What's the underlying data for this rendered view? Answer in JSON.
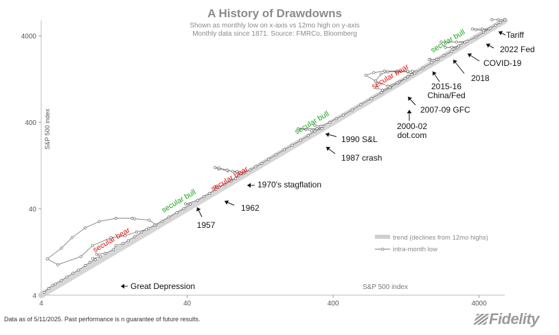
{
  "chart_data": {
    "type": "scatter",
    "title": "A History of Drawdowns",
    "subtitle": [
      "Shown as monthly low on x-axis  vs 12mo high on y-axis",
      "Monthly data since 1871.  Source: FMRCo, Bloomberg"
    ],
    "xlabel": "S&P 500 index",
    "ylabel": "S&P 500 index",
    "xscale": "log",
    "yscale": "log",
    "xlim": [
      4,
      6000
    ],
    "ylim": [
      4,
      6000
    ],
    "xticks": [
      4,
      40,
      400,
      4000
    ],
    "yticks": [
      4,
      40,
      400,
      4000
    ],
    "tick_labels": [
      "4",
      "40",
      "400",
      "4000"
    ],
    "grid": false,
    "legend_position": "bottom-right",
    "series": [
      {
        "name": "trend (declines from 12mo highs)",
        "style": "band",
        "x": [
          4,
          6000
        ],
        "y": [
          4,
          6000
        ],
        "color": "#cfcfcf"
      },
      {
        "name": "intra-month low",
        "style": "line-markers",
        "color": "#707070",
        "points": [
          [
            4.2,
            4.3
          ],
          [
            4.5,
            4.8
          ],
          [
            4.8,
            5.2
          ],
          [
            5.0,
            5.4
          ],
          [
            5.5,
            5.9
          ],
          [
            6.0,
            6.5
          ],
          [
            6.6,
            7.2
          ],
          [
            7.2,
            7.8
          ],
          [
            8.0,
            8.8
          ],
          [
            8.6,
            9.6
          ],
          [
            9.4,
            10.3
          ],
          [
            9.0,
            10.6
          ],
          [
            10.2,
            11.2
          ],
          [
            9.6,
            11.9
          ],
          [
            11.0,
            12.2
          ],
          [
            12.5,
            13.5
          ],
          [
            13.0,
            15.0
          ],
          [
            14.5,
            15.8
          ],
          [
            15.8,
            17.1
          ],
          [
            17.5,
            19.0
          ],
          [
            19.5,
            21.5
          ],
          [
            21.8,
            23.8
          ],
          [
            24.5,
            26.0
          ],
          [
            22.0,
            29.5
          ],
          [
            17.5,
            30.6
          ],
          [
            16.8,
            31.0
          ],
          [
            13.0,
            31.0
          ],
          [
            10.0,
            28.5
          ],
          [
            8.0,
            24.0
          ],
          [
            6.5,
            18.5
          ],
          [
            5.5,
            14.0
          ],
          [
            4.4,
            10.5
          ],
          [
            5.2,
            9.0
          ],
          [
            7.5,
            11.2
          ],
          [
            9.0,
            15.0
          ],
          [
            12.0,
            18.5
          ],
          [
            15.0,
            19.5
          ],
          [
            18.0,
            21.5
          ],
          [
            21.0,
            23.0
          ],
          [
            24.0,
            25.8
          ],
          [
            27.0,
            28.6
          ],
          [
            30.0,
            32.0
          ],
          [
            34.0,
            36.0
          ],
          [
            38.0,
            40.0
          ],
          [
            42.0,
            45.0
          ],
          [
            39.0,
            45.5
          ],
          [
            47.0,
            50.0
          ],
          [
            52.0,
            55.0
          ],
          [
            57.0,
            60.0
          ],
          [
            63.0,
            67.0
          ],
          [
            62.0,
            72.0
          ],
          [
            66.0,
            71.0
          ],
          [
            72.0,
            76.0
          ],
          [
            80.0,
            84.0
          ],
          [
            86.0,
            90.0
          ],
          [
            90.0,
            96.0
          ],
          [
            95.0,
            102.0
          ],
          [
            100.0,
            106.0
          ],
          [
            88.0,
            108.0
          ],
          [
            76.0,
            110.0
          ],
          [
            66.0,
            115.0
          ],
          [
            62.0,
            120.0
          ],
          [
            66.0,
            119.0
          ],
          [
            75.0,
            112.0
          ],
          [
            82.0,
            108.0
          ],
          [
            94.0,
            102.0
          ],
          [
            98.0,
            104.0
          ],
          [
            108.0,
            112.0
          ],
          [
            118.0,
            122.0
          ],
          [
            130.0,
            134.0
          ],
          [
            145.0,
            150.0
          ],
          [
            162.0,
            168.0
          ],
          [
            185.0,
            192.0
          ],
          [
            210.0,
            217.0
          ],
          [
            240.0,
            247.0
          ],
          [
            270.0,
            280.0
          ],
          [
            300.0,
            315.0
          ],
          [
            335.0,
            338.0
          ],
          [
            230.0,
            336.0
          ],
          [
            260.0,
            330.0
          ],
          [
            285.0,
            320.0
          ],
          [
            310.0,
            340.0
          ],
          [
            340.0,
            360.0
          ],
          [
            300.0,
            368.0
          ],
          [
            330.0,
            360.0
          ],
          [
            380.0,
            400.0
          ],
          [
            420.0,
            440.0
          ],
          [
            470.0,
            485.0
          ],
          [
            540.0,
            555.0
          ],
          [
            620.0,
            640.0
          ],
          [
            730.0,
            750.0
          ],
          [
            860.0,
            880.0
          ],
          [
            990.0,
            1010.0
          ],
          [
            1140.0,
            1170.0
          ],
          [
            1300.0,
            1340.0
          ],
          [
            1390.0,
            1440.0
          ],
          [
            1300.0,
            1530.0
          ],
          [
            1100.0,
            1530.0
          ],
          [
            950.0,
            1530.0
          ],
          [
            850.0,
            1440.0
          ],
          [
            780.0,
            1200.0
          ],
          [
            800.0,
            1000.0
          ],
          [
            870.0,
            940.0
          ],
          [
            980.0,
            1010.0
          ],
          [
            1120.0,
            1140.0
          ],
          [
            1250.0,
            1280.0
          ],
          [
            1390.0,
            1420.0
          ],
          [
            1480.0,
            1530.0
          ],
          [
            1400.0,
            1560.0
          ],
          [
            1300.0,
            1560.0
          ],
          [
            1100.0,
            1565.0
          ],
          [
            900.0,
            1565.0
          ],
          [
            760.0,
            1500.0
          ],
          [
            670.0,
            1400.0
          ],
          [
            780.0,
            1200.0
          ],
          [
            950.0,
            1050.0
          ],
          [
            1100.0,
            1150.0
          ],
          [
            1300.0,
            1340.0
          ],
          [
            1450.0,
            1480.0
          ],
          [
            1650.0,
            1690.0
          ],
          [
            1900.0,
            1950.0
          ],
          [
            2100.0,
            2130.0
          ],
          [
            1850.0,
            2130.0
          ],
          [
            1820.0,
            2110.0
          ],
          [
            2050.0,
            2150.0
          ],
          [
            2300.0,
            2350.0
          ],
          [
            2600.0,
            2650.0
          ],
          [
            2850.0,
            2900.0
          ],
          [
            2350.0,
            2940.0
          ],
          [
            2600.0,
            2950.0
          ],
          [
            2900.0,
            3050.0
          ],
          [
            3200.0,
            3380.0
          ],
          [
            2200.0,
            3390.0
          ],
          [
            2800.0,
            3390.0
          ],
          [
            3300.0,
            3450.0
          ],
          [
            3800.0,
            3850.0
          ],
          [
            4300.0,
            4400.0
          ],
          [
            4700.0,
            4800.0
          ],
          [
            4200.0,
            4800.0
          ],
          [
            3600.0,
            4800.0
          ],
          [
            3800.0,
            4700.0
          ],
          [
            4300.0,
            4600.0
          ],
          [
            4800.0,
            4900.0
          ],
          [
            5200.0,
            5300.0
          ],
          [
            5600.0,
            5700.0
          ],
          [
            6000.0,
            6100.0
          ],
          [
            5400.0,
            6140.0
          ],
          [
            4900.0,
            6140.0
          ]
        ]
      }
    ],
    "annotations": [
      {
        "text": "Great Depression",
        "x": 4.4,
        "y": 10.5
      },
      {
        "text": "1957",
        "x": 38.0,
        "y": 45.5
      },
      {
        "text": "1962",
        "x": 52.0,
        "y": 72.0
      },
      {
        "text": "1970's stagflation",
        "x": 62.0,
        "y": 120.0
      },
      {
        "text": "1987 crash",
        "x": 230.0,
        "y": 336.0
      },
      {
        "text": "1990 S&L",
        "x": 300.0,
        "y": 368.0
      },
      {
        "text": "2000-02\ndot.com",
        "x": 780.0,
        "y": 1440.0
      },
      {
        "text": "2007-09 GFC",
        "x": 670.0,
        "y": 1400.0
      },
      {
        "text": "2015-16\nChina/Fed",
        "x": 1820.0,
        "y": 2110.0
      },
      {
        "text": "2018",
        "x": 2350.0,
        "y": 2940.0
      },
      {
        "text": "COVID-19",
        "x": 2200.0,
        "y": 3390.0
      },
      {
        "text": "2022 Fed",
        "x": 3600.0,
        "y": 4800.0
      },
      {
        "text": "Tariff",
        "x": 4900.0,
        "y": 6140.0
      }
    ],
    "regimes": [
      {
        "text": "secular bear",
        "color": "#e3120b",
        "from": 8,
        "to": 20
      },
      {
        "text": "secular bull",
        "color": "#19a519",
        "from": 20,
        "to": 80
      },
      {
        "text": "secular bear",
        "color": "#e3120b",
        "from": 80,
        "to": 150
      },
      {
        "text": "secular bull",
        "color": "#19a519",
        "from": 300,
        "to": 800
      },
      {
        "text": "secular bear",
        "color": "#e3120b",
        "from": 900,
        "to": 1500
      },
      {
        "text": "secular bull",
        "color": "#19a519",
        "from": 2000,
        "to": 4000
      }
    ]
  },
  "footer": {
    "note": "Data as of 5/11/2025. Past performance is n guarantee of future results.",
    "logo": "Fidelity"
  }
}
